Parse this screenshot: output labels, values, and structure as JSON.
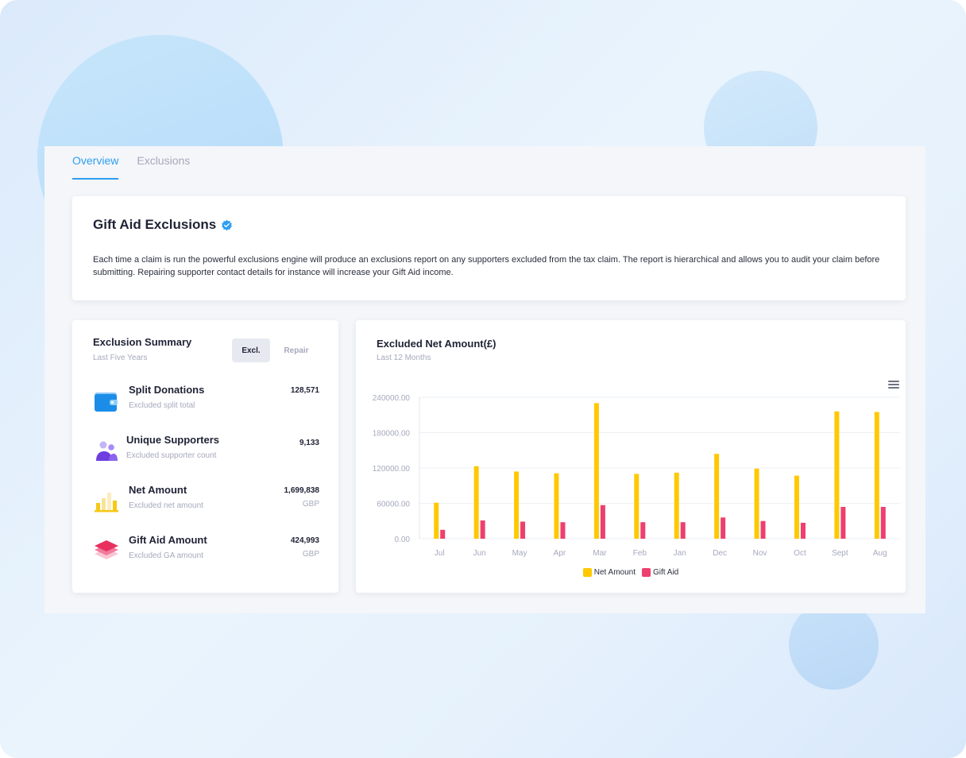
{
  "tabs": [
    {
      "label": "Overview",
      "active": true
    },
    {
      "label": "Exclusions",
      "active": false
    }
  ],
  "intro": {
    "title": "Gift Aid Exclusions",
    "verified_icon": "verified-badge-icon",
    "text": "Each time a claim is run the powerful exclusions engine will produce an exclusions report on any supporters excluded from the tax claim. The report is hierarchical and allows you to audit your claim before submitting. Repairing supporter contact details for instance will increase your Gift Aid income."
  },
  "summary": {
    "title": "Exclusion Summary",
    "subtitle": "Last Five Years",
    "toggle": [
      {
        "label": "Excl.",
        "active": true
      },
      {
        "label": "Repair",
        "active": false
      }
    ],
    "stats": [
      {
        "name": "Split Donations",
        "desc": "Excluded split total",
        "value": "128,571",
        "unit": "",
        "icon": "wallet-icon"
      },
      {
        "name": "Unique Supporters",
        "desc": "Excluded supporter count",
        "value": "9,133",
        "unit": "",
        "icon": "users-icon"
      },
      {
        "name": "Net Amount",
        "desc": "Excluded net amount",
        "value": "1,699,838",
        "unit": "GBP",
        "icon": "bar-chart-icon"
      },
      {
        "name": "Gift Aid Amount",
        "desc": "Excluded GA amount",
        "value": "424,993",
        "unit": "GBP",
        "icon": "layers-icon"
      }
    ]
  },
  "chart_card": {
    "title": "Excluded Net Amount(£)",
    "subtitle": "Last 12 Months"
  },
  "colors": {
    "accent": "#2e9ef1",
    "net": "#ffc800",
    "gift": "#ee3f6e"
  },
  "chart_data": {
    "type": "bar",
    "categories": [
      "Jul",
      "Jun",
      "May",
      "Apr",
      "Mar",
      "Feb",
      "Jan",
      "Dec",
      "Nov",
      "Oct",
      "Sept",
      "Aug"
    ],
    "series": [
      {
        "name": "Net Amount",
        "values": [
          61000,
          123000,
          114000,
          111000,
          230000,
          110000,
          112000,
          144000,
          119000,
          107000,
          216000,
          215000
        ]
      },
      {
        "name": "Gift Aid",
        "values": [
          15000,
          31000,
          29000,
          28000,
          57000,
          28000,
          28000,
          36000,
          30000,
          27000,
          54000,
          54000
        ]
      }
    ],
    "y_ticks": [
      "240000.00",
      "180000.00",
      "120000.00",
      "60000.00",
      "0.00"
    ],
    "ylim": [
      0,
      240000
    ],
    "grid": true,
    "legend": "bottom-center"
  }
}
